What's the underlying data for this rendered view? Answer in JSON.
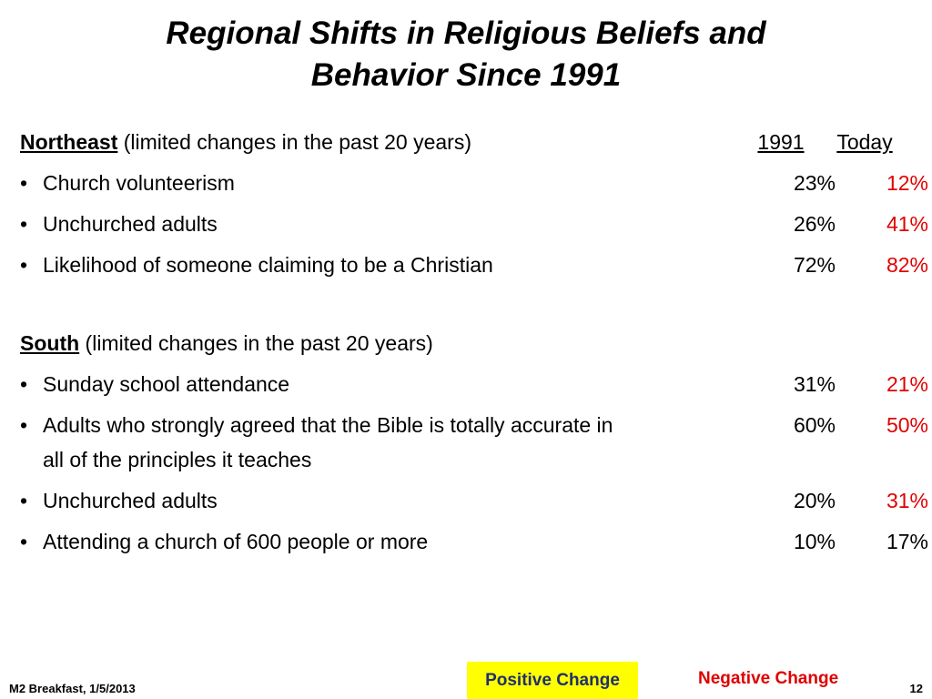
{
  "title": "Regional Shifts in Religious Beliefs and Behavior Since 1991",
  "sections": [
    {
      "name": "Northeast",
      "note": "(limited changes in the past 20 years)",
      "col1": "1991",
      "col2": "Today",
      "rows": [
        {
          "label": "Church volunteerism",
          "then": "23%",
          "today": "12%",
          "today_color": "#e00000"
        },
        {
          "label": "Unchurched adults",
          "then": "26%",
          "today": "41%",
          "today_color": "#e00000"
        },
        {
          "label": "Likelihood of someone claiming to be a Christian",
          "then": "72%",
          "today": "82%",
          "today_color": "#e00000"
        }
      ]
    },
    {
      "name": "South",
      "note": "(limited changes in the past 20 years)",
      "rows": [
        {
          "label": "Sunday school attendance",
          "then": "31%",
          "today": "21%",
          "today_color": "#e00000"
        },
        {
          "label": "Adults who strongly agreed that the Bible is totally accurate in all of the principles it teaches",
          "then": "60%",
          "today": "50%",
          "today_color": "#e00000"
        },
        {
          "label": "Unchurched adults",
          "then": "20%",
          "today": "31%",
          "today_color": "#e00000"
        },
        {
          "label": "Attending a church of 600 people or more",
          "then": "10%",
          "today": "17%",
          "today_color": "#000000"
        }
      ]
    }
  ],
  "legend": {
    "positive": "Positive Change",
    "negative": "Negative Change"
  },
  "footer": {
    "left": "M2 Breakfast, 1/5/2013",
    "page": "12"
  }
}
